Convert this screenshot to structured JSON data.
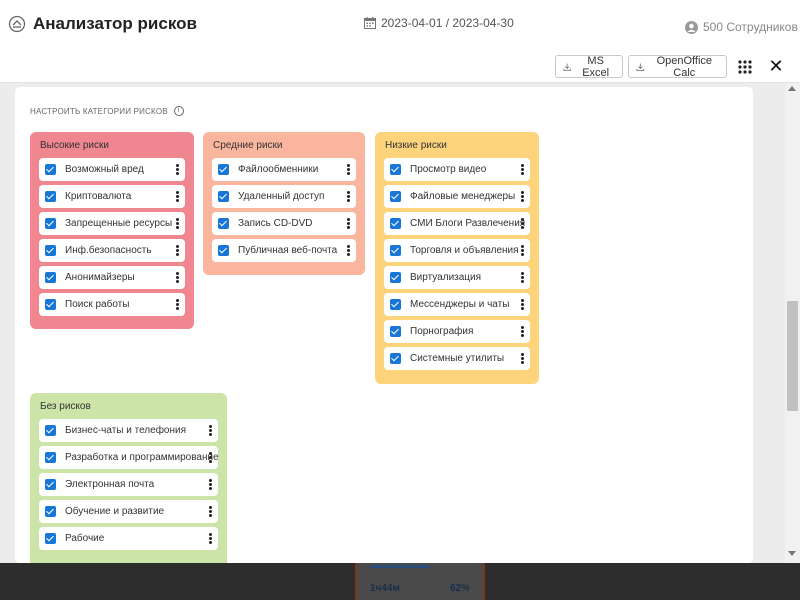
{
  "header": {
    "title": "Анализатор рисков",
    "date_range": "2023-04-01 / 2023-04-30",
    "employees": "500 Сотрудников"
  },
  "toolbar": {
    "excel_label": "MS Excel",
    "calc_label": "OpenOffice Calc"
  },
  "panel": {
    "title": "НАСТРОИТЬ КАТЕГОРИИ РИСКОВ",
    "groups": [
      {
        "title": "Высокие риски",
        "color": "#ef8690",
        "items": [
          "Возможный вред",
          "Криптовалюта",
          "Запрещенные ресурсы",
          "Инф.безопасность",
          "Анонимайзеры",
          "Поиск работы"
        ]
      },
      {
        "title": "Средние риски",
        "color": "#f9b59d",
        "items": [
          "Файлообменники",
          "Удаленный доступ",
          "Запись CD-DVD",
          "Публичная веб-почта"
        ]
      },
      {
        "title": "Низкие риски",
        "color": "#fdd47c",
        "items": [
          "Просмотр видео",
          "Файловые менеджеры",
          "СМИ Блоги Развлечения",
          "Торговля и объявления",
          "Виртуализация",
          "Мессенджеры и чаты",
          "Порнография",
          "Системные утилиты"
        ]
      },
      {
        "title": "Без рисков",
        "color": "#cde4a9",
        "items": [
          "Бизнес-чаты и телефония",
          "Разработка и программирование",
          "Электронная почта",
          "Обучение и развитие",
          "Рабочие"
        ]
      }
    ]
  },
  "background": {
    "time": "1ч44м",
    "percent": "62%"
  }
}
